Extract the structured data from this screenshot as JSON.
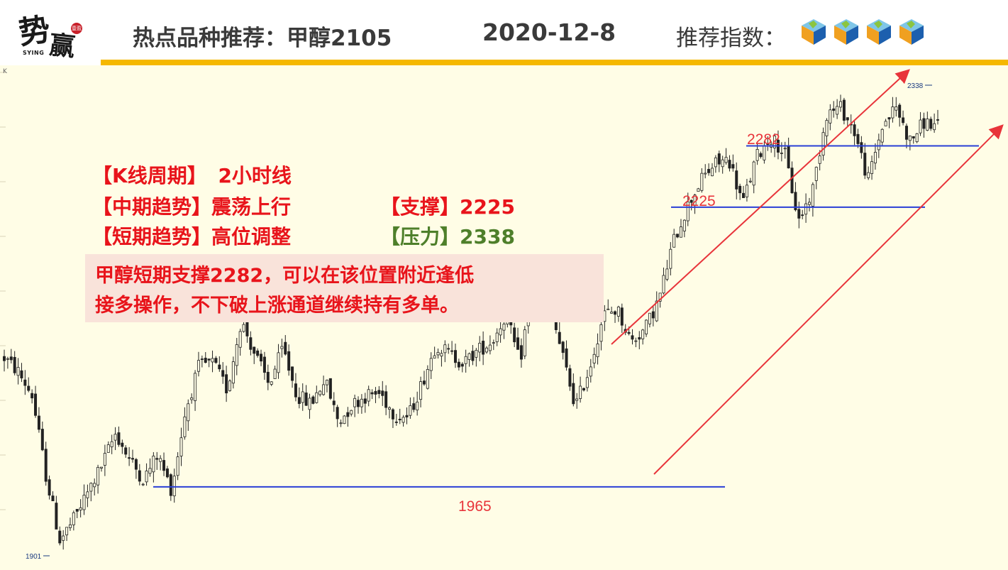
{
  "header": {
    "logo_text_1": "势",
    "logo_text_2": "赢",
    "logo_seal": "壹盈",
    "logo_en": "SYING",
    "title": "热点品种推荐：甲醇2105",
    "date": "2020-12-8",
    "recommend_label": "推荐指数：",
    "recommend_cubes": 4,
    "accent_color": "#f5b800"
  },
  "info": {
    "period_label": "【K线周期】",
    "period_value": "2小时线",
    "mid_trend_label": "【中期趋势】",
    "mid_trend_value": "震荡上行",
    "short_trend_label": "【短期趋势】",
    "short_trend_value": "高位调整",
    "support_label": "【支撑】",
    "support_value": "2225",
    "pressure_label": "【压力】",
    "pressure_value": "2338",
    "note_line_1": "甲醇短期支撑2282，可以在该位置附近逢低",
    "note_line_2": "接多操作，不下破上涨通道继续持有多单。",
    "text_color": "#e8141b",
    "pressure_color": "#4e7f2a"
  },
  "chart_data": {
    "type": "candlestick",
    "corner_label": "K",
    "low_label": "1901",
    "high_label": "2338",
    "ylim": [
      1895,
      2345
    ],
    "horizontal_levels": [
      {
        "value": 1965,
        "label": "1965",
        "color": "#2a3fd6"
      },
      {
        "value": 2225,
        "label": "2225",
        "color": "#2a3fd6"
      },
      {
        "value": 2282,
        "label": "2282",
        "color": "#2a3fd6"
      }
    ],
    "channel_color": "#e8343a",
    "candle_close_path": [
      2085,
      2072,
      2050,
      1975,
      1915,
      1935,
      1960,
      1985,
      2015,
      1990,
      1972,
      1995,
      1962,
      2035,
      2078,
      2080,
      2055,
      2120,
      2088,
      2060,
      2094,
      2050,
      2042,
      2065,
      2025,
      2042,
      2050,
      2052,
      2032,
      2030,
      2062,
      2098,
      2088,
      2080,
      2092,
      2100,
      2125,
      2080,
      2160,
      2142,
      2090,
      2040,
      2075,
      2125,
      2130,
      2100,
      2112,
      2140,
      2192,
      2225,
      2250,
      2265,
      2270,
      2228,
      2272,
      2290,
      2276,
      2212,
      2240,
      2312,
      2318,
      2296,
      2250,
      2300,
      2318,
      2286,
      2304,
      2300
    ]
  }
}
